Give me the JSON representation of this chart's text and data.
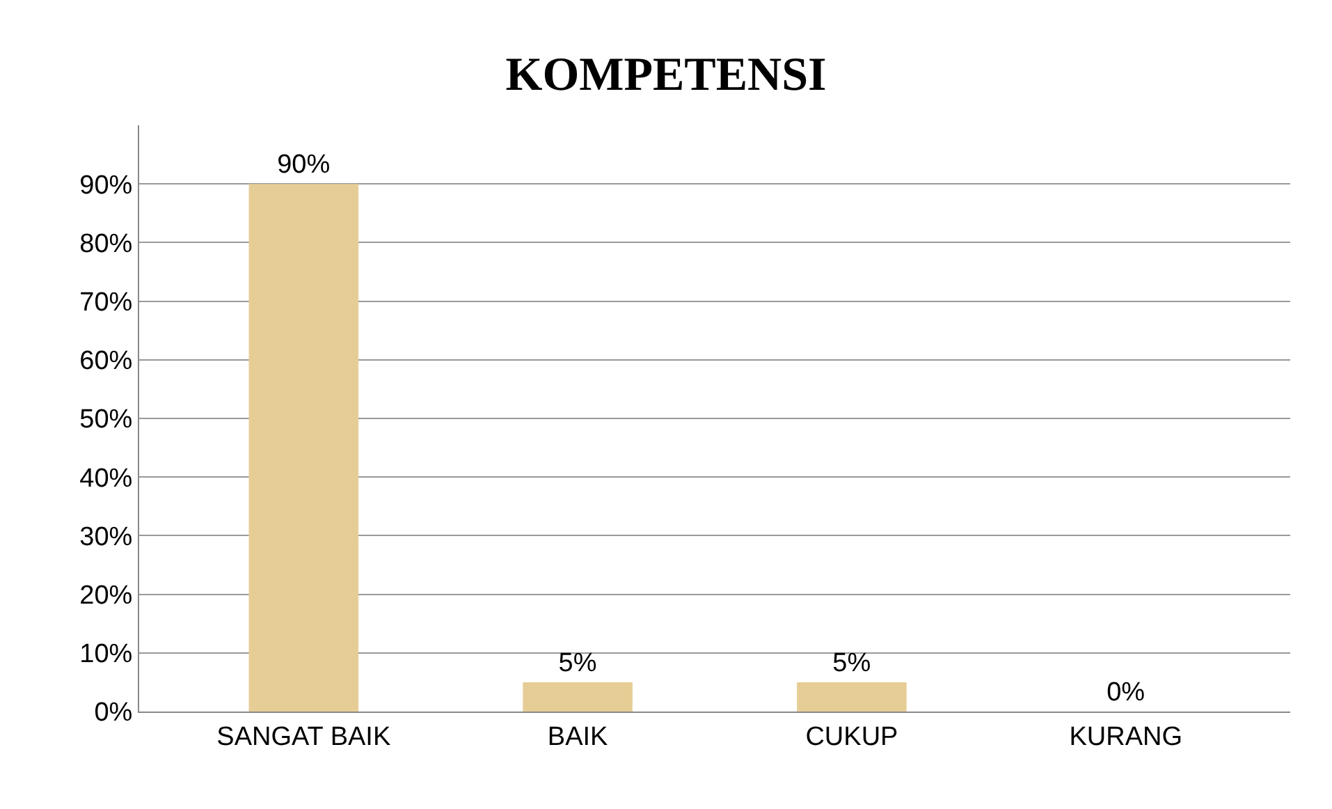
{
  "chart_data": {
    "type": "bar",
    "title": "KOMPETENSI",
    "categories": [
      "SANGAT BAIK",
      "BAIK",
      "CUKUP",
      "KURANG"
    ],
    "values": [
      90,
      5,
      5,
      0
    ],
    "value_labels": [
      "90%",
      "5%",
      "5%",
      "0%"
    ],
    "color": "#e6cd96",
    "ylim": [
      0,
      100
    ],
    "yticks": [
      {
        "value": 0,
        "label": "0%"
      },
      {
        "value": 10,
        "label": "10%"
      },
      {
        "value": 20,
        "label": "20%"
      },
      {
        "value": 30,
        "label": "30%"
      },
      {
        "value": 40,
        "label": "40%"
      },
      {
        "value": 50,
        "label": "50%"
      },
      {
        "value": 60,
        "label": "60%"
      },
      {
        "value": 70,
        "label": "70%"
      },
      {
        "value": 80,
        "label": "80%"
      },
      {
        "value": 90,
        "label": "90%"
      }
    ],
    "grid": "y"
  }
}
